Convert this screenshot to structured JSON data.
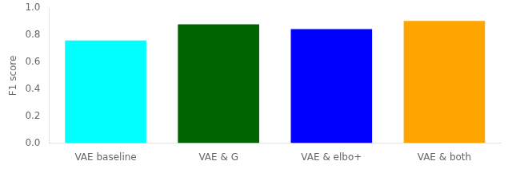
{
  "chart_data": {
    "type": "bar",
    "categories": [
      "VAE baseline",
      "VAE & G",
      "VAE & elbo+",
      "VAE & both"
    ],
    "values": [
      0.76,
      0.88,
      0.845,
      0.905
    ],
    "colors": [
      "cyan",
      "#006400",
      "blue",
      "orange"
    ],
    "ylabel": "F1 score",
    "ylim": [
      0.0,
      1.0
    ],
    "yticks": [
      {
        "value": 0.0,
        "label": "0.0"
      },
      0.2,
      0.4,
      0.6,
      0.8,
      {
        "value": 1.0,
        "label": "1.0"
      }
    ],
    "grid": false
  }
}
